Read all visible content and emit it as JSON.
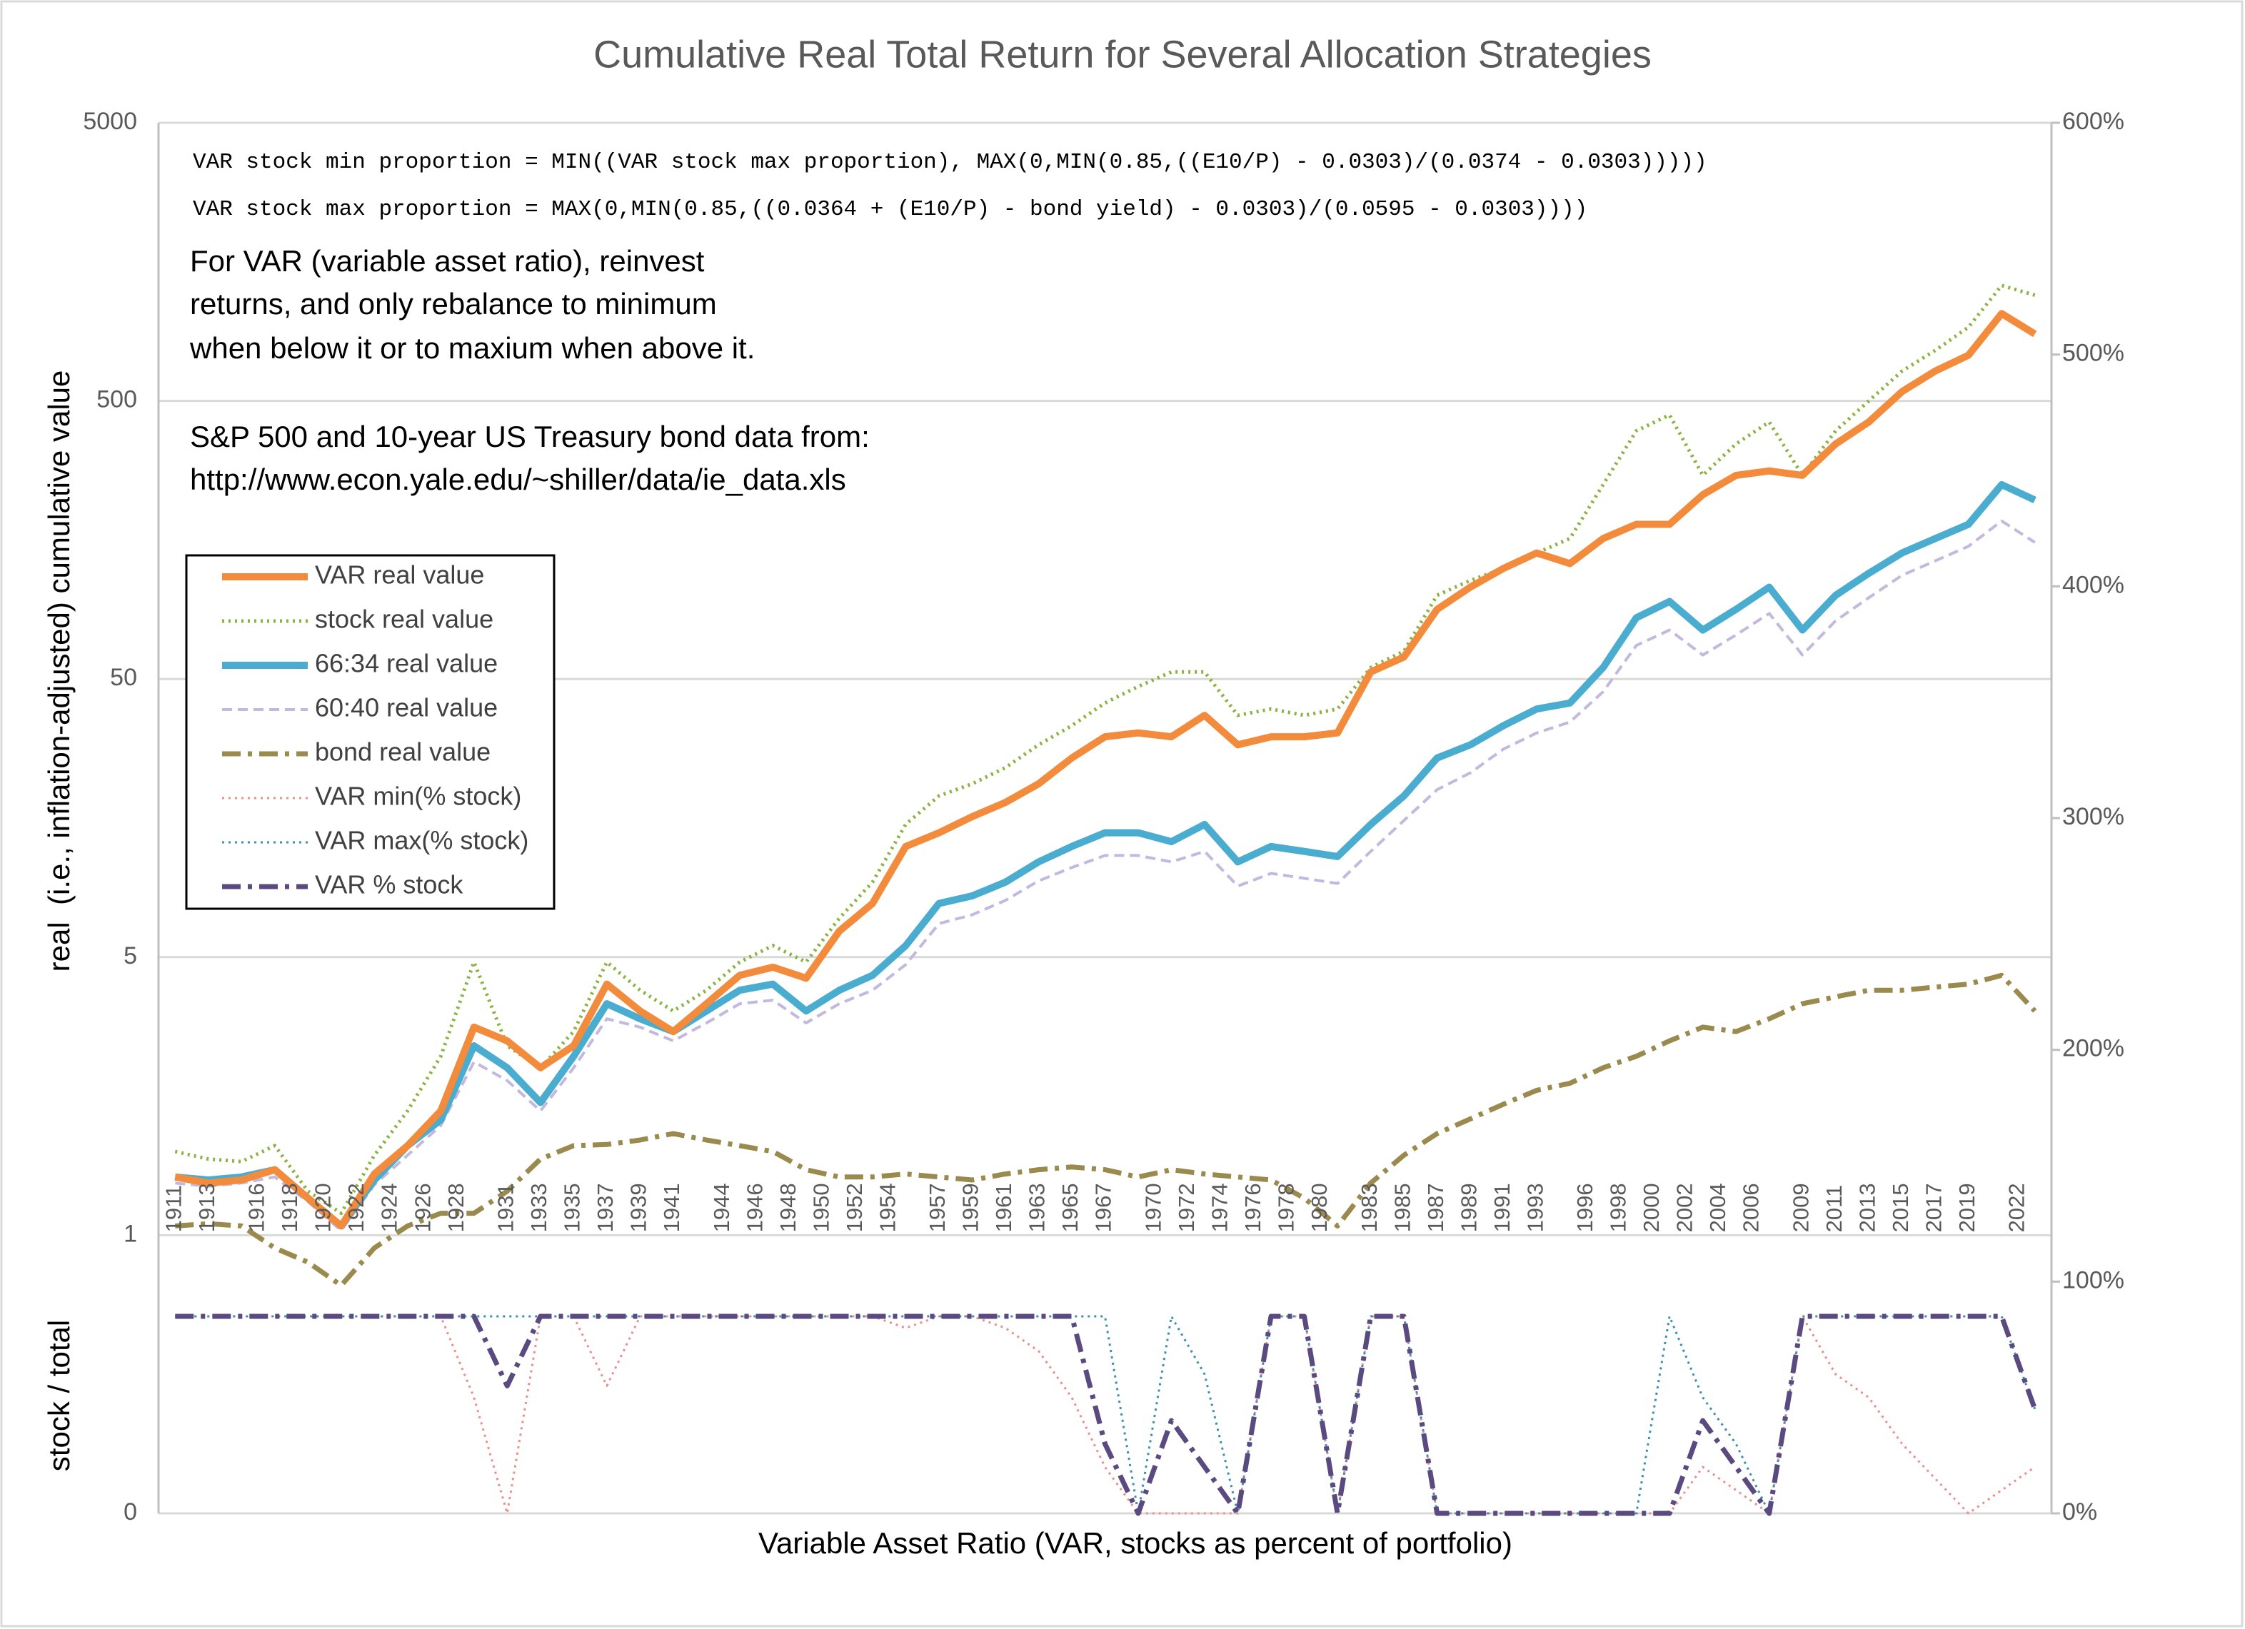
{
  "chart_data": {
    "type": "line",
    "title": "Cumulative Real Total Return for Several Allocation Strategies",
    "x_label": "Variable Asset Ratio (VAR, stocks as percent of portfolio)",
    "y_label": "real  (i.e., inflation-adjusted) cumulative value",
    "y_label_lower": "stock / total",
    "formulas": [
      "VAR stock min proportion = MIN((VAR stock max proportion), MAX(0,MIN(0.85,((E10/P) - 0.0303)/(0.0374 - 0.0303)))))",
      "VAR stock max proportion = MAX(0,MIN(0.85,((0.0364 + (E10/P) - bond yield) - 0.0303)/(0.0595 - 0.0303))))"
    ],
    "notes": [
      "For VAR (variable asset ratio), reinvest",
      "returns, and only rebalance to minimum",
      "when below it or to maxium when above it."
    ],
    "source": [
      "S&P 500 and 10-year US Treasury bond data from:",
      "http://www.econ.yale.edu/~shiller/data/ie_data.xls"
    ],
    "log_y": true,
    "grid": true,
    "legend": "left",
    "xlim": [
      1910,
      2024
    ],
    "xticks": [
      1911,
      1913,
      1916,
      1918,
      1920,
      1922,
      1924,
      1926,
      1928,
      1931,
      1933,
      1935,
      1937,
      1939,
      1941,
      1944,
      1946,
      1948,
      1950,
      1952,
      1954,
      1957,
      1959,
      1961,
      1963,
      1965,
      1967,
      1970,
      1972,
      1974,
      1976,
      1978,
      1980,
      1983,
      1985,
      1987,
      1989,
      1991,
      1993,
      1996,
      1998,
      2000,
      2002,
      2004,
      2006,
      2009,
      2011,
      2013,
      2015,
      2017,
      2019,
      2022
    ],
    "ylim": [
      0.05,
      5000
    ],
    "yticks": [
      {
        "value": 0.05,
        "label": "0"
      },
      {
        "value": 0.5,
        "label": "1"
      },
      5,
      50,
      500,
      5000
    ],
    "y2lim": [
      0,
      600
    ],
    "y2ticks": [
      {
        "value": 0,
        "label": "0%"
      },
      {
        "value": 100,
        "label": "100%"
      },
      {
        "value": 200,
        "label": "200%"
      },
      {
        "value": 300,
        "label": "300%"
      },
      {
        "value": 400,
        "label": "400%"
      },
      {
        "value": 500,
        "label": "500%"
      },
      {
        "value": 600,
        "label": "600%"
      }
    ],
    "x": [
      1911,
      1913,
      1915,
      1917,
      1919,
      1921,
      1923,
      1925,
      1927,
      1929,
      1931,
      1933,
      1935,
      1937,
      1939,
      1941,
      1943,
      1945,
      1947,
      1949,
      1951,
      1953,
      1955,
      1957,
      1959,
      1961,
      1963,
      1965,
      1967,
      1969,
      1971,
      1973,
      1975,
      1977,
      1979,
      1981,
      1983,
      1985,
      1987,
      1989,
      1991,
      1993,
      1995,
      1997,
      1999,
      2001,
      2003,
      2005,
      2007,
      2009,
      2011,
      2013,
      2015,
      2017,
      2019,
      2021,
      2023
    ],
    "series": [
      {
        "name": "VAR real value",
        "color": "#f28c3c",
        "line_style": "solid",
        "values": [
          0.81,
          0.77,
          0.79,
          0.86,
          0.68,
          0.54,
          0.83,
          1.05,
          1.4,
          2.8,
          2.5,
          2.0,
          2.4,
          4.0,
          3.2,
          2.7,
          3.4,
          4.3,
          4.6,
          4.2,
          6.2,
          7.8,
          12.5,
          14,
          16,
          18,
          21,
          26,
          31,
          32,
          31,
          37,
          29,
          31,
          31,
          32,
          53,
          60,
          89,
          107,
          125,
          142,
          130,
          160,
          180,
          180,
          230,
          270,
          280,
          270,
          350,
          420,
          540,
          640,
          730,
          1030,
          870
        ]
      },
      {
        "name": "stock real value",
        "color": "#8ab342",
        "line_style": "dotted",
        "values": [
          1.0,
          0.94,
          0.92,
          1.05,
          0.72,
          0.6,
          0.97,
          1.4,
          2.2,
          4.8,
          2.4,
          2.0,
          2.7,
          4.8,
          3.8,
          3.2,
          3.8,
          4.8,
          5.5,
          4.8,
          6.9,
          9.3,
          15,
          19,
          21,
          24,
          29,
          34,
          41,
          47,
          53,
          53,
          37,
          39,
          37,
          39,
          55,
          63,
          100,
          113,
          125,
          142,
          160,
          250,
          390,
          445,
          270,
          350,
          420,
          270,
          390,
          500,
          640,
          760,
          920,
          1300,
          1200
        ]
      },
      {
        "name": "66:34 real value",
        "color": "#4aaccf",
        "line_style": "solid",
        "values": [
          0.81,
          0.79,
          0.81,
          0.86,
          0.68,
          0.54,
          0.79,
          1.05,
          1.3,
          2.4,
          2.0,
          1.5,
          2.2,
          3.4,
          3.0,
          2.7,
          3.2,
          3.8,
          4.0,
          3.2,
          3.8,
          4.3,
          5.5,
          7.8,
          8.3,
          9.3,
          11,
          12.5,
          14,
          14,
          13,
          15,
          11,
          12.5,
          12,
          11.5,
          15,
          19,
          26,
          29,
          34,
          39,
          41,
          55,
          83,
          95,
          75,
          89,
          107,
          75,
          100,
          120,
          142,
          160,
          180,
          250,
          220
        ]
      },
      {
        "name": "60:40 real value",
        "color": "#c3b8dd",
        "line_style": "dashed",
        "values": [
          0.77,
          0.75,
          0.77,
          0.81,
          0.66,
          0.52,
          0.76,
          0.97,
          1.24,
          2.1,
          1.8,
          1.4,
          2.0,
          3.0,
          2.8,
          2.5,
          2.9,
          3.4,
          3.5,
          2.9,
          3.4,
          3.8,
          4.7,
          6.6,
          7.1,
          8.0,
          9.4,
          10.5,
          11.6,
          11.6,
          11,
          12,
          9.0,
          10,
          9.6,
          9.2,
          12,
          15.5,
          20,
          23,
          28,
          32,
          35,
          45,
          66,
          75,
          61,
          72,
          86,
          61,
          81,
          98,
          118,
          133,
          150,
          185,
          155
        ]
      },
      {
        "name": "bond real value",
        "color": "#9b8a4e",
        "line_style": "dashdot",
        "values": [
          0.54,
          0.55,
          0.54,
          0.45,
          0.4,
          0.33,
          0.45,
          0.54,
          0.6,
          0.6,
          0.72,
          0.94,
          1.05,
          1.06,
          1.1,
          1.16,
          1.1,
          1.05,
          1.0,
          0.86,
          0.81,
          0.81,
          0.83,
          0.81,
          0.79,
          0.83,
          0.86,
          0.88,
          0.86,
          0.81,
          0.86,
          0.83,
          0.81,
          0.79,
          0.68,
          0.54,
          0.77,
          0.97,
          1.16,
          1.31,
          1.48,
          1.66,
          1.76,
          2.0,
          2.2,
          2.5,
          2.8,
          2.7,
          3.0,
          3.4,
          3.6,
          3.8,
          3.8,
          3.9,
          4.0,
          4.3,
          3.2
        ]
      },
      {
        "name": "VAR min(% stock)",
        "color": "#e8908a",
        "line_style": "dotted",
        "axis": "y2",
        "values": [
          85,
          85,
          85,
          85,
          85,
          85,
          85,
          85,
          85,
          50,
          0,
          85,
          85,
          55,
          85,
          85,
          85,
          85,
          85,
          85,
          85,
          85,
          80,
          85,
          85,
          80,
          70,
          50,
          20,
          0,
          0,
          0,
          0,
          85,
          85,
          0,
          85,
          85,
          0,
          0,
          0,
          0,
          0,
          0,
          0,
          0,
          20,
          10,
          0,
          85,
          60,
          50,
          30,
          15,
          0,
          10,
          20
        ]
      },
      {
        "name": "VAR max(% stock)",
        "color": "#3c8fb0",
        "line_style": "dotted",
        "axis": "y2",
        "values": [
          85,
          85,
          85,
          85,
          85,
          85,
          85,
          85,
          85,
          85,
          85,
          85,
          85,
          85,
          85,
          85,
          85,
          85,
          85,
          85,
          85,
          85,
          85,
          85,
          85,
          85,
          85,
          85,
          85,
          0,
          85,
          60,
          0,
          85,
          85,
          0,
          85,
          85,
          0,
          0,
          0,
          0,
          0,
          0,
          0,
          85,
          50,
          30,
          0,
          85,
          85,
          85,
          85,
          85,
          85,
          85,
          45
        ]
      },
      {
        "name": "VAR % stock",
        "color": "#5a4a80",
        "line_style": "dashdot",
        "axis": "y2",
        "values": [
          85,
          85,
          85,
          85,
          85,
          85,
          85,
          85,
          85,
          85,
          55,
          85,
          85,
          85,
          85,
          85,
          85,
          85,
          85,
          85,
          85,
          85,
          85,
          85,
          85,
          85,
          85,
          85,
          30,
          0,
          40,
          20,
          0,
          85,
          85,
          0,
          85,
          85,
          0,
          0,
          0,
          0,
          0,
          0,
          0,
          0,
          40,
          20,
          0,
          85,
          85,
          85,
          85,
          85,
          85,
          85,
          45
        ]
      }
    ]
  }
}
